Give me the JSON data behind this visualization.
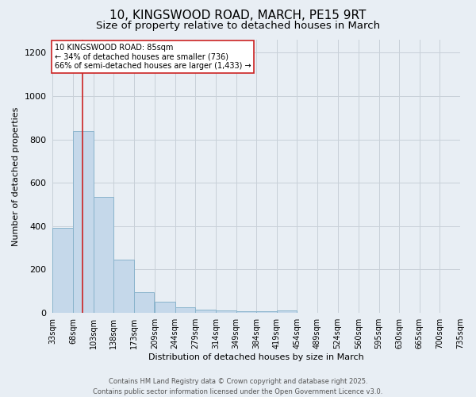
{
  "title_line1": "10, KINGSWOOD ROAD, MARCH, PE15 9RT",
  "title_line2": "Size of property relative to detached houses in March",
  "xlabel": "Distribution of detached houses by size in March",
  "ylabel": "Number of detached properties",
  "bar_color": "#c5d8ea",
  "bar_edge_color": "#8ab4cc",
  "background_color": "#e8eef4",
  "annotation_text": "10 KINGSWOOD ROAD: 85sqm\n← 34% of detached houses are smaller (736)\n66% of semi-detached houses are larger (1,433) →",
  "annotation_box_color": "#ffffff",
  "annotation_box_edge": "#cc2222",
  "red_line_color": "#cc2222",
  "red_line_x": 85,
  "bins": [
    33,
    68,
    103,
    138,
    173,
    209,
    244,
    279,
    314,
    349,
    384,
    419,
    454,
    489,
    524,
    560,
    595,
    630,
    665,
    700,
    735
  ],
  "counts": [
    390,
    840,
    535,
    245,
    95,
    52,
    25,
    15,
    10,
    8,
    5,
    10,
    0,
    0,
    0,
    0,
    0,
    0,
    0,
    0
  ],
  "ylim": [
    0,
    1260
  ],
  "yticks": [
    0,
    200,
    400,
    600,
    800,
    1000,
    1200
  ],
  "footer_line1": "Contains HM Land Registry data © Crown copyright and database right 2025.",
  "footer_line2": "Contains public sector information licensed under the Open Government Licence v3.0.",
  "grid_color": "#c8d0d8",
  "title_fontsize": 11,
  "subtitle_fontsize": 9.5,
  "tick_fontsize": 7,
  "label_fontsize": 8,
  "annotation_fontsize": 7,
  "footer_fontsize": 6
}
